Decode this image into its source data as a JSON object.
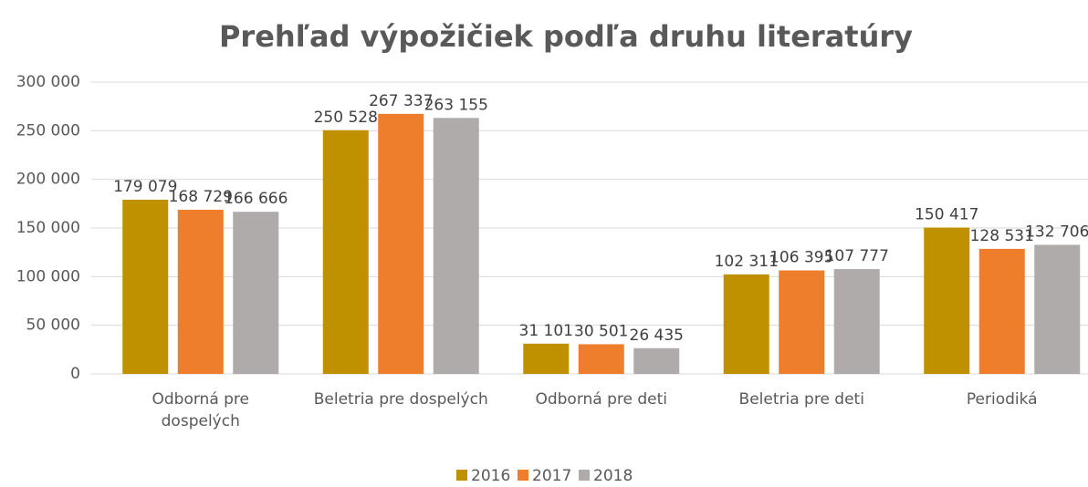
{
  "chart_data": {
    "type": "bar",
    "title": "Prehľad výpožičiek podľa druhu literatúry",
    "categories": [
      "Odborná pre dospelých",
      "Beletria pre dospelých",
      "Odborná pre deti",
      "Beletria pre deti",
      "Periodiká"
    ],
    "series": [
      {
        "name": "2016",
        "color": "#bf9000",
        "values": [
          179079,
          250528,
          31101,
          102311,
          150417
        ],
        "value_labels": [
          "179 079",
          "250 528",
          "31 101",
          "102 311",
          "150 417"
        ]
      },
      {
        "name": "2017",
        "color": "#ee7d2c",
        "values": [
          168729,
          267337,
          30501,
          106395,
          128531
        ],
        "value_labels": [
          "168 729",
          "267 337",
          "30 501",
          "106 395",
          "128 531"
        ]
      },
      {
        "name": "2018",
        "color": "#afabab",
        "values": [
          166666,
          263155,
          26435,
          107777,
          132706
        ],
        "value_labels": [
          "166 666",
          "263 155",
          "26 435",
          "107 777",
          "132 706"
        ]
      }
    ],
    "ylim": [
      0,
      300000
    ],
    "yticks": [
      0,
      {
        "value": 50000,
        "label": "50 000"
      },
      {
        "value": 100000,
        "label": "100 000"
      },
      {
        "value": 150000,
        "label": "150 000"
      },
      {
        "value": 200000,
        "label": "200 000"
      },
      {
        "value": 250000,
        "label": "250 000"
      },
      {
        "value": 300000,
        "label": "300 000"
      }
    ],
    "grid": true,
    "legend": "bottom"
  }
}
